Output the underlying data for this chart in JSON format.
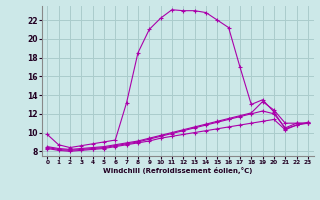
{
  "xlabel": "Windchill (Refroidissement éolien,°C)",
  "bg_color": "#cce8e8",
  "grid_color": "#aacccc",
  "line_color": "#aa00aa",
  "xlim": [
    -0.5,
    23.5
  ],
  "ylim": [
    7.5,
    23.5
  ],
  "yticks": [
    8,
    10,
    12,
    14,
    16,
    18,
    20,
    22
  ],
  "xticks": [
    0,
    1,
    2,
    3,
    4,
    5,
    6,
    7,
    8,
    9,
    10,
    11,
    12,
    13,
    14,
    15,
    16,
    17,
    18,
    19,
    20,
    21,
    22,
    23
  ],
  "curve1_x": [
    0,
    1,
    2,
    3,
    4,
    5,
    6,
    7,
    8,
    9,
    10,
    11,
    12,
    13,
    14,
    15,
    16,
    17,
    18,
    19,
    20,
    21,
    22,
    23
  ],
  "curve1_y": [
    9.8,
    8.7,
    8.4,
    8.6,
    8.8,
    9.0,
    9.2,
    13.2,
    18.5,
    21.0,
    22.2,
    23.1,
    23.0,
    23.0,
    22.8,
    22.0,
    21.2,
    17.0,
    13.0,
    13.5,
    12.2,
    10.4,
    10.8,
    11.1
  ],
  "curve2_x": [
    0,
    1,
    2,
    3,
    4,
    5,
    6,
    7,
    8,
    9,
    10,
    11,
    12,
    13,
    14,
    15,
    16,
    17,
    18,
    19,
    20,
    21,
    22,
    23
  ],
  "curve2_y": [
    8.5,
    8.3,
    8.2,
    8.3,
    8.4,
    8.5,
    8.7,
    8.9,
    9.1,
    9.4,
    9.7,
    10.0,
    10.3,
    10.6,
    10.9,
    11.2,
    11.5,
    11.8,
    12.1,
    13.3,
    12.4,
    11.0,
    11.0,
    11.0
  ],
  "curve3_x": [
    0,
    1,
    2,
    3,
    4,
    5,
    6,
    7,
    8,
    9,
    10,
    11,
    12,
    13,
    14,
    15,
    16,
    17,
    18,
    19,
    20,
    21,
    22,
    23
  ],
  "curve3_y": [
    8.4,
    8.2,
    8.1,
    8.2,
    8.3,
    8.4,
    8.6,
    8.8,
    9.0,
    9.3,
    9.6,
    9.9,
    10.2,
    10.5,
    10.8,
    11.1,
    11.4,
    11.7,
    12.0,
    12.3,
    12.0,
    10.5,
    11.0,
    11.0
  ],
  "curve4_x": [
    0,
    1,
    2,
    3,
    4,
    5,
    6,
    7,
    8,
    9,
    10,
    11,
    12,
    13,
    14,
    15,
    16,
    17,
    18,
    19,
    20,
    21,
    22,
    23
  ],
  "curve4_y": [
    8.3,
    8.1,
    8.0,
    8.1,
    8.2,
    8.3,
    8.5,
    8.7,
    8.9,
    9.1,
    9.4,
    9.6,
    9.8,
    10.0,
    10.2,
    10.4,
    10.6,
    10.8,
    11.0,
    11.2,
    11.4,
    10.3,
    10.8,
    11.0
  ]
}
